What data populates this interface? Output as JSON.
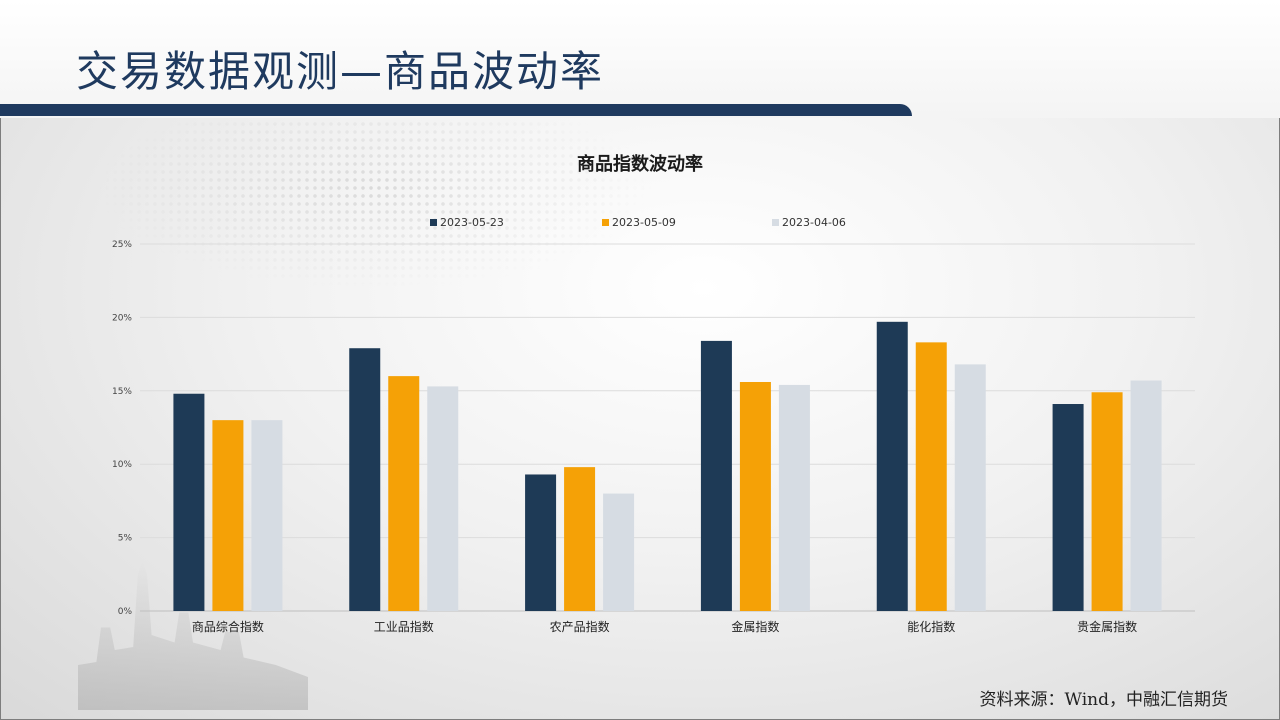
{
  "page": {
    "title": "交易数据观测—商品波动率",
    "source": "资料来源：Wind，中融汇信期货"
  },
  "chart_data": {
    "type": "bar",
    "title": "商品指数波动率",
    "categories": [
      "商品综合指数",
      "工业品指数",
      "农产品指数",
      "金属指数",
      "能化指数",
      "贵金属指数"
    ],
    "series": [
      {
        "name": "2023-05-23",
        "color": "#1e3a56",
        "values": [
          14.8,
          17.9,
          9.3,
          18.4,
          19.7,
          14.1
        ]
      },
      {
        "name": "2023-05-09",
        "color": "#f5a106",
        "values": [
          13.0,
          16.0,
          9.8,
          15.6,
          18.3,
          14.9
        ]
      },
      {
        "name": "2023-04-06",
        "color": "#d6dce3",
        "values": [
          13.0,
          15.3,
          8.0,
          15.4,
          16.8,
          15.7
        ]
      }
    ],
    "yticks": [
      "0%",
      "5%",
      "10%",
      "15%",
      "20%",
      "25%"
    ],
    "ylim": [
      0,
      25
    ],
    "grid": true,
    "legend_position": "top"
  }
}
